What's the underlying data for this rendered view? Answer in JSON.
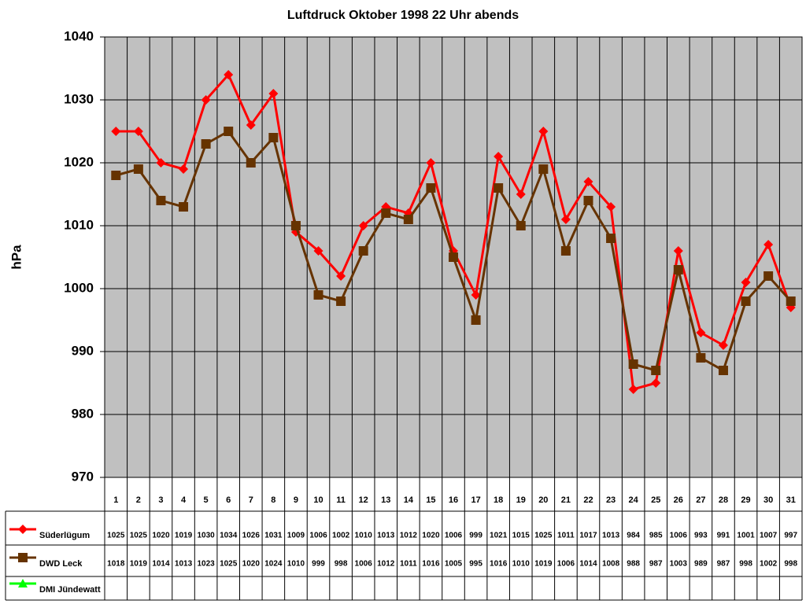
{
  "chart_data": {
    "type": "line",
    "title": "Luftdruck Oktober 1998 22 Uhr abends",
    "y_label": "hPa",
    "categories": [
      "1",
      "2",
      "3",
      "4",
      "5",
      "6",
      "7",
      "8",
      "9",
      "10",
      "11",
      "12",
      "13",
      "14",
      "15",
      "16",
      "17",
      "18",
      "19",
      "20",
      "21",
      "22",
      "23",
      "24",
      "25",
      "26",
      "27",
      "28",
      "29",
      "30",
      "31"
    ],
    "series": [
      {
        "name": "Süderlügum",
        "color": "#ff0000",
        "marker": "diamond",
        "values": [
          1025,
          1025,
          1020,
          1019,
          1030,
          1034,
          1026,
          1031,
          1009,
          1006,
          1002,
          1010,
          1013,
          1012,
          1020,
          1006,
          999,
          1021,
          1015,
          1025,
          1011,
          1017,
          1013,
          984,
          985,
          1006,
          993,
          991,
          1001,
          1007,
          997
        ]
      },
      {
        "name": "DWD Leck",
        "color": "#663300",
        "marker": "square",
        "values": [
          1018,
          1019,
          1014,
          1013,
          1023,
          1025,
          1020,
          1024,
          1010,
          999,
          998,
          1006,
          1012,
          1011,
          1016,
          1005,
          995,
          1016,
          1010,
          1019,
          1006,
          1014,
          1008,
          988,
          987,
          1003,
          989,
          987,
          998,
          1002,
          998
        ]
      },
      {
        "name": "DMI Jündewatt",
        "color": "#00ff00",
        "marker": "triangle",
        "values": [
          null,
          null,
          null,
          null,
          null,
          null,
          null,
          null,
          null,
          null,
          null,
          null,
          null,
          null,
          null,
          null,
          null,
          null,
          null,
          null,
          null,
          null,
          null,
          null,
          null,
          null,
          null,
          null,
          null,
          null,
          null
        ]
      }
    ],
    "ylim": [
      970,
      1040
    ],
    "yticks": [
      970,
      980,
      990,
      1000,
      1010,
      1020,
      1030,
      1040
    ],
    "grid": true
  }
}
